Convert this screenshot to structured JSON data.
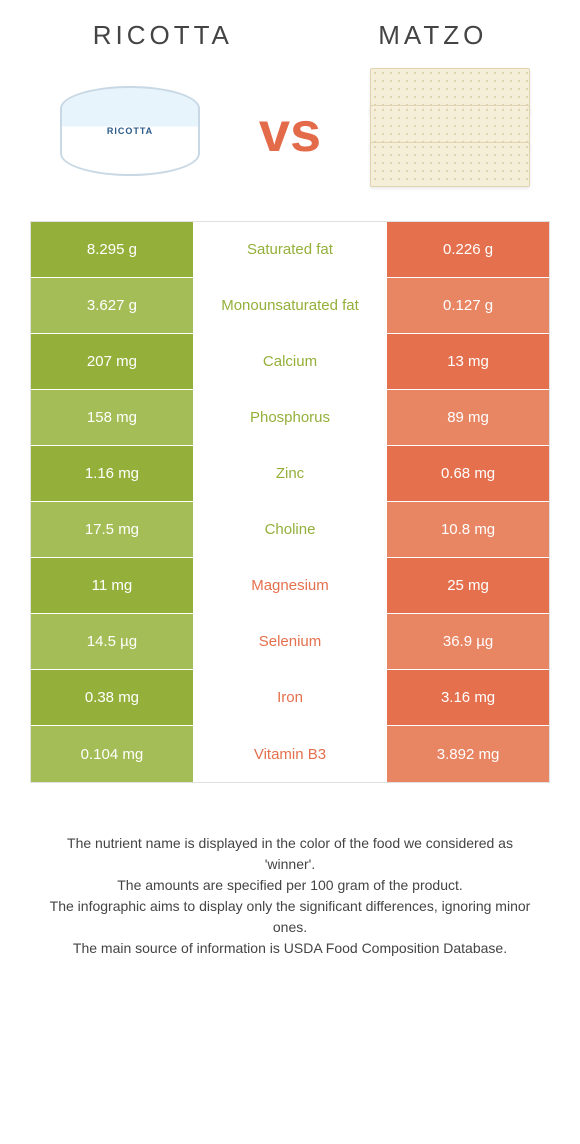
{
  "food1": {
    "name": "Ricotta",
    "label": "RICOTTA"
  },
  "food2": {
    "name": "Matzo"
  },
  "vs": "vs",
  "colors": {
    "green": "#94b03a",
    "green_light": "#a4bd56",
    "orange": "#e4704d",
    "orange_light": "#e88563"
  },
  "rows": [
    {
      "nutrient": "Saturated fat",
      "left": "8.295 g",
      "right": "0.226 g",
      "winner": "left"
    },
    {
      "nutrient": "Monounsaturated fat",
      "left": "3.627 g",
      "right": "0.127 g",
      "winner": "left"
    },
    {
      "nutrient": "Calcium",
      "left": "207 mg",
      "right": "13 mg",
      "winner": "left"
    },
    {
      "nutrient": "Phosphorus",
      "left": "158 mg",
      "right": "89 mg",
      "winner": "left"
    },
    {
      "nutrient": "Zinc",
      "left": "1.16 mg",
      "right": "0.68 mg",
      "winner": "left"
    },
    {
      "nutrient": "Choline",
      "left": "17.5 mg",
      "right": "10.8 mg",
      "winner": "left"
    },
    {
      "nutrient": "Magnesium",
      "left": "11 mg",
      "right": "25 mg",
      "winner": "right"
    },
    {
      "nutrient": "Selenium",
      "left": "14.5 µg",
      "right": "36.9 µg",
      "winner": "right"
    },
    {
      "nutrient": "Iron",
      "left": "0.38 mg",
      "right": "3.16 mg",
      "winner": "right"
    },
    {
      "nutrient": "Vitamin B3",
      "left": "0.104 mg",
      "right": "3.892 mg",
      "winner": "right"
    }
  ],
  "footer": {
    "line1": "The nutrient name is displayed in the color of the food we considered as 'winner'.",
    "line2": "The amounts are specified per 100 gram of the product.",
    "line3": "The infographic aims to display only the significant differences, ignoring minor ones.",
    "line4": "The main source of information is USDA Food Composition Database."
  }
}
